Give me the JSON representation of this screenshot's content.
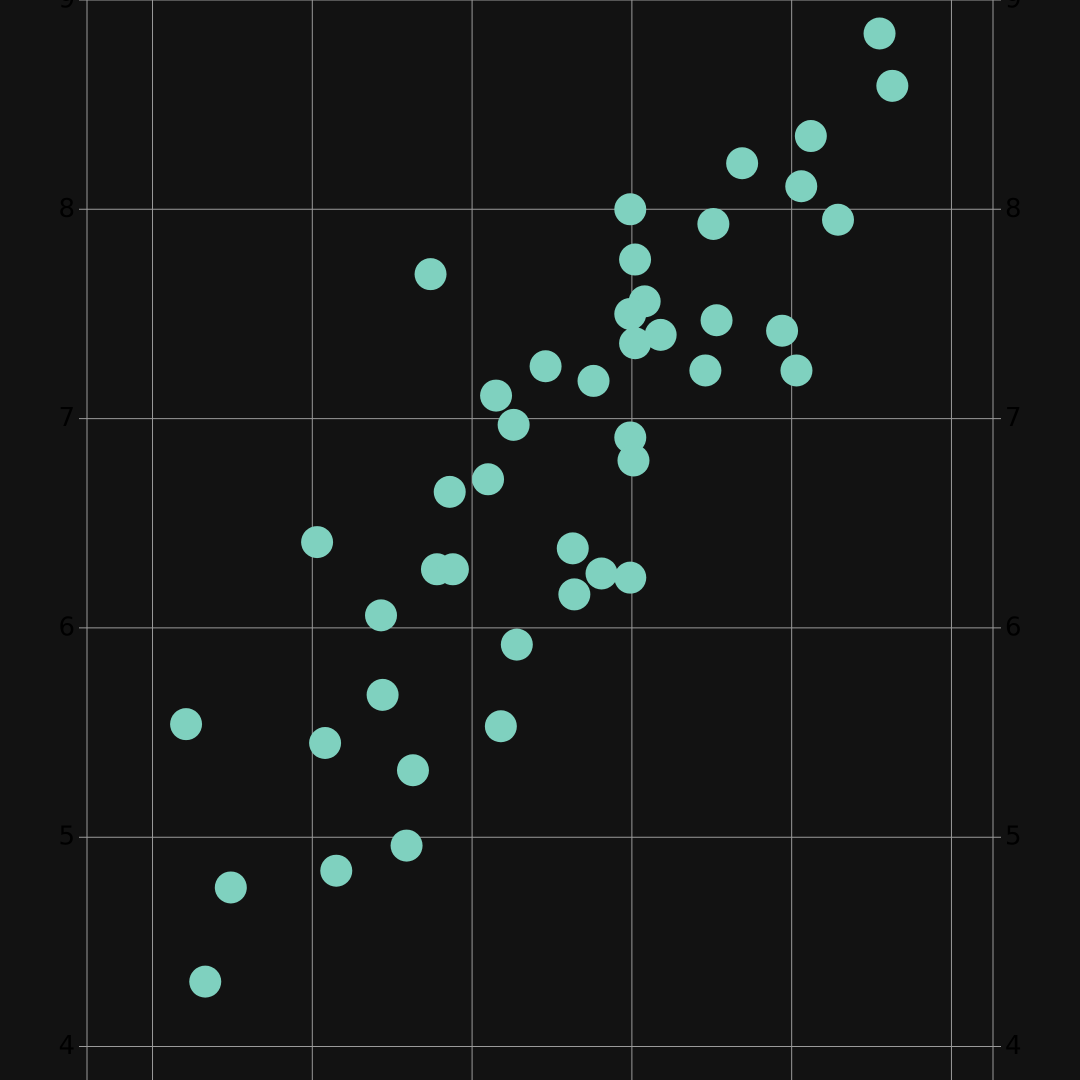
{
  "chart_data": {
    "type": "scatter",
    "color": "#7fd1bf",
    "grid": true,
    "xlim": [
      -0.41,
      5.26
    ],
    "xticks": [
      0,
      1,
      2,
      3,
      4,
      5
    ],
    "ylim": [
      3.84,
      9.0
    ],
    "yticks": [
      4,
      5,
      6,
      7,
      8,
      9
    ],
    "x": [
      4.55,
      4.63,
      4.12,
      3.69,
      4.06,
      2.99,
      4.29,
      3.51,
      3.02,
      1.74,
      3.08,
      2.99,
      3.53,
      3.18,
      3.94,
      3.02,
      2.46,
      3.46,
      4.03,
      2.76,
      2.15,
      2.26,
      2.99,
      3.01,
      2.1,
      1.86,
      1.03,
      2.63,
      1.78,
      1.88,
      2.81,
      2.99,
      2.64,
      1.43,
      2.28,
      1.44,
      0.21,
      2.18,
      1.08,
      1.63,
      1.59,
      1.15,
      0.49,
      0.33
    ],
    "values": [
      8.84,
      8.59,
      8.35,
      8.22,
      8.11,
      8.0,
      7.95,
      7.93,
      7.76,
      7.69,
      7.56,
      7.5,
      7.47,
      7.4,
      7.42,
      7.36,
      7.25,
      7.23,
      7.23,
      7.18,
      7.11,
      6.97,
      6.91,
      6.8,
      6.71,
      6.65,
      6.41,
      6.38,
      6.28,
      6.28,
      6.26,
      6.24,
      6.16,
      6.06,
      5.92,
      5.68,
      5.54,
      5.53,
      5.45,
      5.32,
      4.96,
      4.84,
      4.76,
      4.31
    ]
  }
}
